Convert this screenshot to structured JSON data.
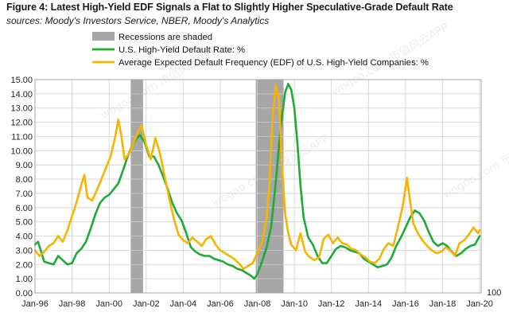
{
  "header": {
    "title": "Figure 4: Latest High-Yield EDF Signals a Flat to Slightly Higher Speculative-Grade Default Rate",
    "subtitle": "sources: Moody's Investors Service, NBER, Moody's Analytics"
  },
  "watermark": "wogoo.com 市值风云APP",
  "chart_data": {
    "type": "line",
    "title": "Figure 4: Latest High-Yield EDF Signals a Flat to Slightly Higher Speculative-Grade Default Rate",
    "xlabel": "",
    "ylabel": "",
    "xlim": [
      "1996-01",
      "2020-02"
    ],
    "ylim": [
      0,
      15
    ],
    "y_ticks": [
      "0.00",
      "1.00",
      "2.00",
      "3.00",
      "4.00",
      "5.00",
      "6.00",
      "7.00",
      "8.00",
      "9.00",
      "10.00",
      "11.00",
      "12.00",
      "13.00",
      "14.00",
      "15.00"
    ],
    "x_ticks": [
      "Jan-96",
      "Jan-98",
      "Jan-00",
      "Jan-02",
      "Jan-04",
      "Jan-06",
      "Jan-08",
      "Jan-10",
      "Jan-12",
      "Jan-14",
      "Jan-16",
      "Jan-18",
      "Jan-20"
    ],
    "extra_axis_label": "100",
    "grid": true,
    "legend_position": "top-left",
    "legend": [
      {
        "name": "Recessions are shaded",
        "kind": "area",
        "color": "#a6a6a6"
      },
      {
        "name": "U.S. High-Yield Default Rate: %",
        "kind": "line",
        "color": "#1faa38"
      },
      {
        "name": "Average Expected Default Frequency (EDF) of U.S. High-Yield Companies: %",
        "kind": "line",
        "color": "#f5b400"
      }
    ],
    "recessions": [
      {
        "start": "2001-03",
        "end": "2001-11"
      },
      {
        "start": "2007-12",
        "end": "2009-06"
      }
    ],
    "series": [
      {
        "name": "U.S. High-Yield Default Rate: %",
        "color": "#1faa38",
        "points": [
          [
            "1996-01",
            3.4
          ],
          [
            "1996-03",
            3.6
          ],
          [
            "1996-05",
            2.9
          ],
          [
            "1996-07",
            2.2
          ],
          [
            "1996-10",
            2.1
          ],
          [
            "1997-01",
            2.0
          ],
          [
            "1997-04",
            2.6
          ],
          [
            "1997-07",
            2.3
          ],
          [
            "1997-10",
            2.0
          ],
          [
            "1998-01",
            2.1
          ],
          [
            "1998-04",
            2.8
          ],
          [
            "1998-07",
            3.1
          ],
          [
            "1998-10",
            3.6
          ],
          [
            "1999-01",
            4.5
          ],
          [
            "1999-04",
            5.5
          ],
          [
            "1999-07",
            6.3
          ],
          [
            "1999-10",
            6.7
          ],
          [
            "2000-01",
            6.9
          ],
          [
            "2000-04",
            7.3
          ],
          [
            "2000-07",
            7.7
          ],
          [
            "2000-10",
            8.6
          ],
          [
            "2001-01",
            9.6
          ],
          [
            "2001-04",
            10.4
          ],
          [
            "2001-07",
            10.9
          ],
          [
            "2001-09",
            11.1
          ],
          [
            "2001-12",
            10.6
          ],
          [
            "2002-03",
            9.6
          ],
          [
            "2002-06",
            9.6
          ],
          [
            "2002-09",
            9.0
          ],
          [
            "2002-12",
            8.2
          ],
          [
            "2003-03",
            7.3
          ],
          [
            "2003-06",
            6.3
          ],
          [
            "2003-09",
            5.6
          ],
          [
            "2003-12",
            5.1
          ],
          [
            "2004-03",
            4.2
          ],
          [
            "2004-06",
            3.2
          ],
          [
            "2004-09",
            2.9
          ],
          [
            "2004-12",
            2.7
          ],
          [
            "2005-03",
            2.6
          ],
          [
            "2005-06",
            2.6
          ],
          [
            "2005-09",
            2.4
          ],
          [
            "2005-12",
            2.3
          ],
          [
            "2006-03",
            2.2
          ],
          [
            "2006-06",
            2.0
          ],
          [
            "2006-09",
            1.9
          ],
          [
            "2006-12",
            1.7
          ],
          [
            "2007-03",
            1.6
          ],
          [
            "2007-06",
            1.4
          ],
          [
            "2007-09",
            1.2
          ],
          [
            "2007-11",
            1.0
          ],
          [
            "2008-01",
            1.3
          ],
          [
            "2008-04",
            2.2
          ],
          [
            "2008-07",
            3.2
          ],
          [
            "2008-10",
            4.7
          ],
          [
            "2009-01",
            7.8
          ],
          [
            "2009-04",
            11.5
          ],
          [
            "2009-07",
            14.1
          ],
          [
            "2009-09",
            14.7
          ],
          [
            "2009-11",
            14.3
          ],
          [
            "2010-01",
            13.0
          ],
          [
            "2010-03",
            10.5
          ],
          [
            "2010-05",
            7.5
          ],
          [
            "2010-07",
            5.3
          ],
          [
            "2010-10",
            3.9
          ],
          [
            "2011-01",
            3.4
          ],
          [
            "2011-04",
            2.6
          ],
          [
            "2011-07",
            2.1
          ],
          [
            "2011-10",
            2.1
          ],
          [
            "2012-01",
            2.6
          ],
          [
            "2012-04",
            3.1
          ],
          [
            "2012-07",
            3.3
          ],
          [
            "2012-10",
            3.2
          ],
          [
            "2013-01",
            3.0
          ],
          [
            "2013-04",
            2.9
          ],
          [
            "2013-07",
            2.8
          ],
          [
            "2013-10",
            2.4
          ],
          [
            "2014-01",
            2.2
          ],
          [
            "2014-04",
            2.0
          ],
          [
            "2014-07",
            1.8
          ],
          [
            "2014-10",
            1.9
          ],
          [
            "2015-01",
            2.0
          ],
          [
            "2015-04",
            2.5
          ],
          [
            "2015-07",
            3.3
          ],
          [
            "2015-10",
            3.9
          ],
          [
            "2016-01",
            4.6
          ],
          [
            "2016-04",
            5.3
          ],
          [
            "2016-07",
            5.8
          ],
          [
            "2016-10",
            5.6
          ],
          [
            "2017-01",
            5.1
          ],
          [
            "2017-04",
            4.3
          ],
          [
            "2017-07",
            3.6
          ],
          [
            "2017-10",
            3.3
          ],
          [
            "2018-01",
            3.5
          ],
          [
            "2018-04",
            3.3
          ],
          [
            "2018-07",
            2.9
          ],
          [
            "2018-10",
            2.6
          ],
          [
            "2019-01",
            2.8
          ],
          [
            "2019-04",
            3.1
          ],
          [
            "2019-07",
            3.3
          ],
          [
            "2019-10",
            3.4
          ],
          [
            "2020-01",
            4.0
          ]
        ]
      },
      {
        "name": "Average Expected Default Frequency (EDF) of U.S. High-Yield Companies: %",
        "color": "#f5b400",
        "points": [
          [
            "1996-01",
            3.0
          ],
          [
            "1996-04",
            2.6
          ],
          [
            "1996-07",
            2.9
          ],
          [
            "1996-10",
            3.3
          ],
          [
            "1997-01",
            3.5
          ],
          [
            "1997-04",
            4.0
          ],
          [
            "1997-07",
            3.6
          ],
          [
            "1997-10",
            4.4
          ],
          [
            "1998-01",
            5.4
          ],
          [
            "1998-04",
            6.4
          ],
          [
            "1998-07",
            7.6
          ],
          [
            "1998-09",
            8.3
          ],
          [
            "1998-11",
            6.7
          ],
          [
            "1999-02",
            6.5
          ],
          [
            "1999-05",
            7.2
          ],
          [
            "1999-08",
            8.0
          ],
          [
            "1999-11",
            8.8
          ],
          [
            "2000-02",
            9.6
          ],
          [
            "2000-05",
            11.0
          ],
          [
            "2000-07",
            12.2
          ],
          [
            "2000-09",
            11.0
          ],
          [
            "2000-11",
            9.4
          ],
          [
            "2001-02",
            9.8
          ],
          [
            "2001-05",
            10.6
          ],
          [
            "2001-08",
            11.4
          ],
          [
            "2001-10",
            11.8
          ],
          [
            "2002-01",
            10.4
          ],
          [
            "2002-04",
            9.4
          ],
          [
            "2002-07",
            10.9
          ],
          [
            "2002-10",
            9.8
          ],
          [
            "2003-01",
            8.2
          ],
          [
            "2003-04",
            6.6
          ],
          [
            "2003-07",
            5.2
          ],
          [
            "2003-10",
            4.1
          ],
          [
            "2004-01",
            3.7
          ],
          [
            "2004-04",
            3.5
          ],
          [
            "2004-07",
            3.9
          ],
          [
            "2004-10",
            3.6
          ],
          [
            "2005-01",
            3.3
          ],
          [
            "2005-04",
            3.8
          ],
          [
            "2005-07",
            4.0
          ],
          [
            "2005-10",
            3.4
          ],
          [
            "2006-01",
            3.0
          ],
          [
            "2006-04",
            2.8
          ],
          [
            "2006-07",
            2.6
          ],
          [
            "2006-10",
            2.4
          ],
          [
            "2007-01",
            2.1
          ],
          [
            "2007-04",
            1.7
          ],
          [
            "2007-07",
            1.9
          ],
          [
            "2007-10",
            2.1
          ],
          [
            "2008-01",
            2.8
          ],
          [
            "2008-04",
            3.6
          ],
          [
            "2008-07",
            5.2
          ],
          [
            "2008-09",
            8.0
          ],
          [
            "2008-11",
            12.5
          ],
          [
            "2009-01",
            14.6
          ],
          [
            "2009-03",
            13.6
          ],
          [
            "2009-05",
            9.0
          ],
          [
            "2009-07",
            5.6
          ],
          [
            "2009-09",
            4.2
          ],
          [
            "2009-11",
            3.4
          ],
          [
            "2010-02",
            3.0
          ],
          [
            "2010-05",
            4.2
          ],
          [
            "2010-08",
            2.9
          ],
          [
            "2010-11",
            2.5
          ],
          [
            "2011-02",
            2.3
          ],
          [
            "2011-05",
            2.5
          ],
          [
            "2011-08",
            3.8
          ],
          [
            "2011-11",
            4.1
          ],
          [
            "2012-02",
            3.5
          ],
          [
            "2012-05",
            3.9
          ],
          [
            "2012-08",
            3.5
          ],
          [
            "2012-11",
            3.4
          ],
          [
            "2013-02",
            3.1
          ],
          [
            "2013-05",
            3.0
          ],
          [
            "2013-08",
            2.7
          ],
          [
            "2013-11",
            2.5
          ],
          [
            "2014-02",
            2.2
          ],
          [
            "2014-05",
            2.1
          ],
          [
            "2014-08",
            2.4
          ],
          [
            "2014-11",
            3.1
          ],
          [
            "2015-02",
            3.5
          ],
          [
            "2015-05",
            3.3
          ],
          [
            "2015-08",
            4.6
          ],
          [
            "2015-11",
            6.0
          ],
          [
            "2016-01",
            7.4
          ],
          [
            "2016-02",
            8.1
          ],
          [
            "2016-04",
            6.4
          ],
          [
            "2016-06",
            4.9
          ],
          [
            "2016-09",
            4.2
          ],
          [
            "2016-12",
            3.7
          ],
          [
            "2017-03",
            3.3
          ],
          [
            "2017-06",
            3.0
          ],
          [
            "2017-09",
            2.8
          ],
          [
            "2017-12",
            2.9
          ],
          [
            "2018-03",
            3.2
          ],
          [
            "2018-06",
            3.0
          ],
          [
            "2018-09",
            2.6
          ],
          [
            "2018-12",
            3.5
          ],
          [
            "2019-03",
            3.7
          ],
          [
            "2019-06",
            4.1
          ],
          [
            "2019-09",
            4.6
          ],
          [
            "2019-12",
            4.2
          ],
          [
            "2020-01",
            4.4
          ]
        ]
      }
    ]
  }
}
